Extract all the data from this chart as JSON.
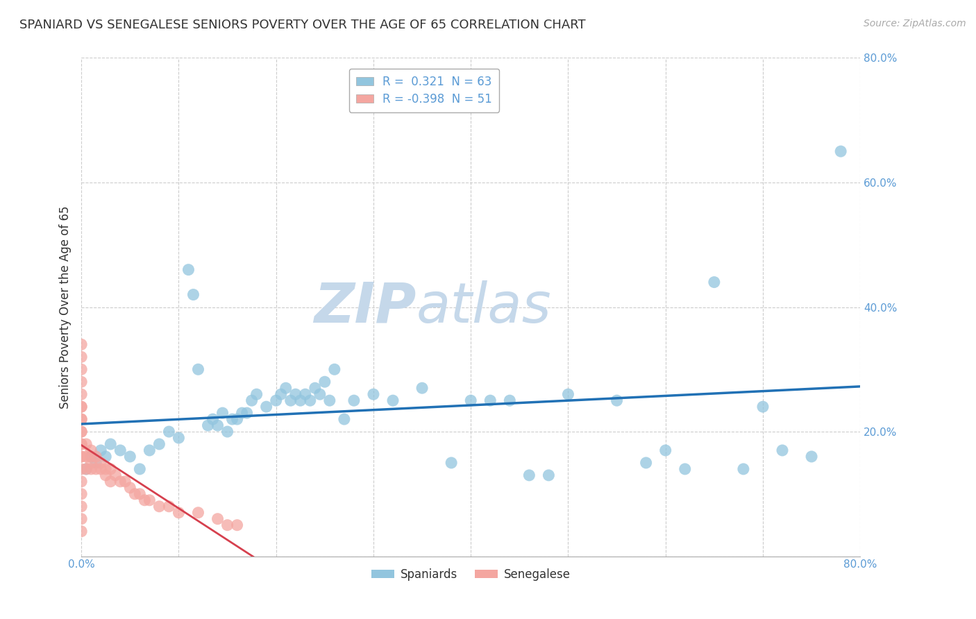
{
  "title": "SPANIARD VS SENEGALESE SENIORS POVERTY OVER THE AGE OF 65 CORRELATION CHART",
  "source_text": "Source: ZipAtlas.com",
  "ylabel": "Seniors Poverty Over the Age of 65",
  "xlim": [
    0,
    0.8
  ],
  "ylim": [
    0,
    0.8
  ],
  "legend_r_blue": "R =  0.321",
  "legend_n_blue": "N = 63",
  "legend_r_pink": "R = -0.398",
  "legend_n_pink": "N = 51",
  "blue_color": "#92c5de",
  "pink_color": "#f4a6a0",
  "blue_line_color": "#2171b5",
  "pink_line_color": "#d6404e",
  "watermark_zip_color": "#c5d8ea",
  "watermark_atlas_color": "#c5d8ea",
  "background_color": "#ffffff",
  "spaniards_x": [
    0.005,
    0.01,
    0.015,
    0.02,
    0.025,
    0.03,
    0.04,
    0.05,
    0.06,
    0.07,
    0.08,
    0.09,
    0.1,
    0.11,
    0.115,
    0.12,
    0.13,
    0.135,
    0.14,
    0.145,
    0.15,
    0.155,
    0.16,
    0.165,
    0.17,
    0.175,
    0.18,
    0.19,
    0.2,
    0.205,
    0.21,
    0.215,
    0.22,
    0.225,
    0.23,
    0.235,
    0.24,
    0.245,
    0.25,
    0.255,
    0.26,
    0.27,
    0.28,
    0.3,
    0.32,
    0.35,
    0.38,
    0.4,
    0.42,
    0.44,
    0.46,
    0.48,
    0.5,
    0.55,
    0.58,
    0.6,
    0.62,
    0.65,
    0.68,
    0.7,
    0.72,
    0.75,
    0.78
  ],
  "spaniards_y": [
    0.14,
    0.16,
    0.15,
    0.17,
    0.16,
    0.18,
    0.17,
    0.16,
    0.14,
    0.17,
    0.18,
    0.2,
    0.19,
    0.46,
    0.42,
    0.3,
    0.21,
    0.22,
    0.21,
    0.23,
    0.2,
    0.22,
    0.22,
    0.23,
    0.23,
    0.25,
    0.26,
    0.24,
    0.25,
    0.26,
    0.27,
    0.25,
    0.26,
    0.25,
    0.26,
    0.25,
    0.27,
    0.26,
    0.28,
    0.25,
    0.3,
    0.22,
    0.25,
    0.26,
    0.25,
    0.27,
    0.15,
    0.25,
    0.25,
    0.25,
    0.13,
    0.13,
    0.26,
    0.25,
    0.15,
    0.17,
    0.14,
    0.44,
    0.14,
    0.24,
    0.17,
    0.16,
    0.65
  ],
  "senegalese_x": [
    0.0,
    0.0,
    0.0,
    0.0,
    0.0,
    0.0,
    0.0,
    0.0,
    0.0,
    0.0,
    0.0,
    0.0,
    0.0,
    0.0,
    0.0,
    0.0,
    0.0,
    0.0,
    0.0,
    0.0,
    0.005,
    0.005,
    0.005,
    0.01,
    0.01,
    0.01,
    0.01,
    0.015,
    0.015,
    0.02,
    0.02,
    0.025,
    0.025,
    0.03,
    0.03,
    0.035,
    0.04,
    0.045,
    0.05,
    0.055,
    0.06,
    0.065,
    0.07,
    0.08,
    0.09,
    0.1,
    0.12,
    0.14,
    0.15,
    0.16,
    0.0
  ],
  "senegalese_y": [
    0.14,
    0.16,
    0.18,
    0.2,
    0.22,
    0.24,
    0.26,
    0.28,
    0.3,
    0.32,
    0.1,
    0.12,
    0.08,
    0.06,
    0.04,
    0.16,
    0.18,
    0.2,
    0.22,
    0.24,
    0.14,
    0.16,
    0.18,
    0.14,
    0.16,
    0.15,
    0.17,
    0.14,
    0.16,
    0.14,
    0.15,
    0.14,
    0.13,
    0.14,
    0.12,
    0.13,
    0.12,
    0.12,
    0.11,
    0.1,
    0.1,
    0.09,
    0.09,
    0.08,
    0.08,
    0.07,
    0.07,
    0.06,
    0.05,
    0.05,
    0.34
  ]
}
